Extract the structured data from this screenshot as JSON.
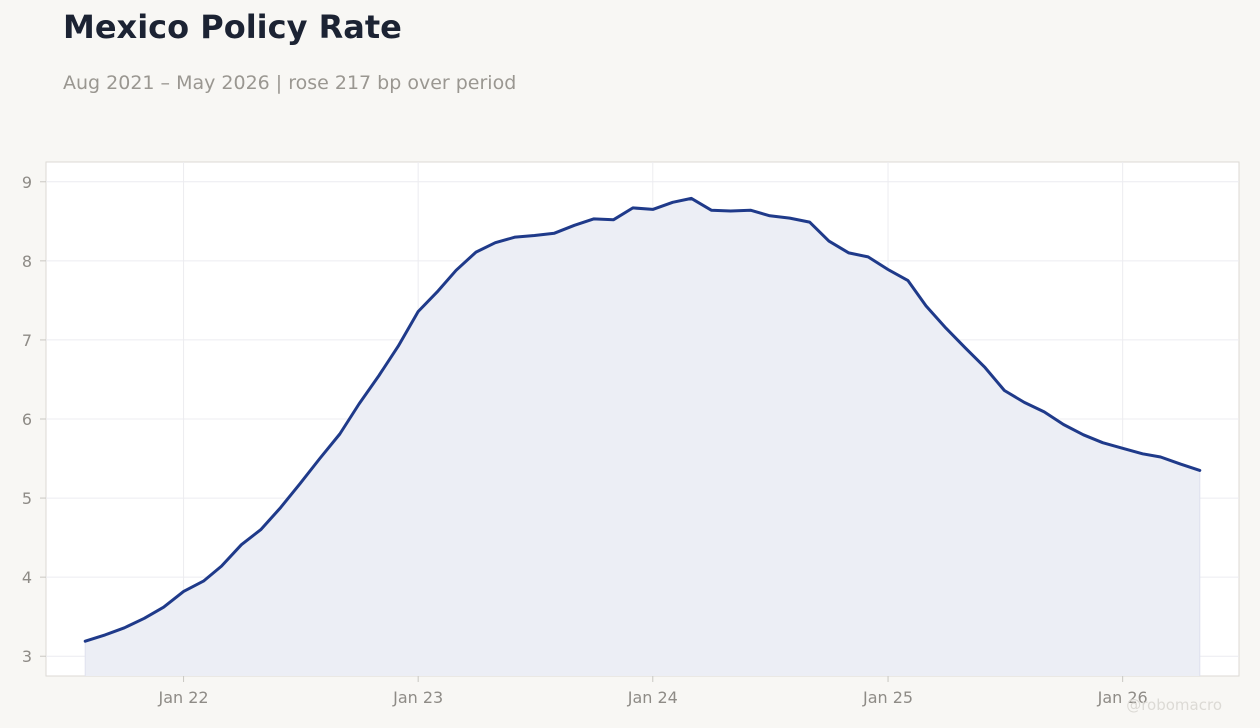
{
  "header": {
    "title": "Mexico Policy Rate",
    "subtitle": "Aug 2021 – May 2026 | rose 217 bp over period"
  },
  "watermark": "@robomacro",
  "colors": {
    "line": "#1f3a8a",
    "fill": "#eceef5",
    "grid": "#ececf0",
    "frame": "#dcdad5",
    "background": "#f8f7f4",
    "plot_background": "#ffffff"
  },
  "chart_data": {
    "type": "area",
    "title": "Mexico Policy Rate",
    "subtitle": "Aug 2021 – May 2026 | rose 217 bp over period",
    "xlabel": "",
    "ylabel": "",
    "ylim": [
      2.75,
      9.25
    ],
    "xlim": [
      "2021-06-01",
      "2026-07-01"
    ],
    "grid": true,
    "y_ticks": [
      3,
      4,
      5,
      6,
      7,
      8,
      9
    ],
    "x_ticks": [
      {
        "date": "2022-01-01",
        "label": "Jan 22"
      },
      {
        "date": "2023-01-01",
        "label": "Jan 23"
      },
      {
        "date": "2024-01-01",
        "label": "Jan 24"
      },
      {
        "date": "2025-01-01",
        "label": "Jan 25"
      },
      {
        "date": "2026-01-01",
        "label": "Jan 26"
      }
    ],
    "series": [
      {
        "x": [
          "2021-08-01",
          "2021-09-01",
          "2021-10-01",
          "2021-11-01",
          "2021-12-01",
          "2022-01-01",
          "2022-02-01",
          "2022-03-01",
          "2022-04-01",
          "2022-05-01",
          "2022-06-01",
          "2022-07-01",
          "2022-08-01",
          "2022-09-01",
          "2022-10-01",
          "2022-11-01",
          "2022-12-01",
          "2023-01-01",
          "2023-02-01",
          "2023-03-01",
          "2023-04-01",
          "2023-05-01",
          "2023-06-01",
          "2023-07-01",
          "2023-08-01",
          "2023-09-01",
          "2023-10-01",
          "2023-11-01",
          "2023-12-01",
          "2024-01-01",
          "2024-02-01",
          "2024-03-01",
          "2024-04-01",
          "2024-05-01",
          "2024-06-01",
          "2024-07-01",
          "2024-08-01",
          "2024-09-01",
          "2024-10-01",
          "2024-11-01",
          "2024-12-01",
          "2025-01-01",
          "2025-02-01",
          "2025-03-01",
          "2025-04-01",
          "2025-05-01",
          "2025-06-01",
          "2025-07-01",
          "2025-08-01",
          "2025-09-01",
          "2025-10-01",
          "2025-11-01",
          "2025-12-01",
          "2026-01-01",
          "2026-02-01",
          "2026-03-01",
          "2026-04-01",
          "2026-05-01"
        ],
        "values": [
          3.19,
          3.27,
          3.36,
          3.48,
          3.62,
          3.82,
          3.95,
          4.14,
          4.41,
          4.6,
          4.88,
          5.18,
          5.5,
          5.81,
          6.19,
          6.55,
          6.92,
          7.36,
          7.62,
          7.88,
          8.11,
          8.23,
          8.3,
          8.32,
          8.35,
          8.45,
          8.53,
          8.52,
          8.67,
          8.65,
          8.74,
          8.79,
          8.64,
          8.63,
          8.64,
          8.57,
          8.54,
          8.49,
          8.25,
          8.1,
          8.05,
          7.89,
          7.75,
          7.43,
          7.15,
          6.9,
          6.65,
          6.36,
          6.21,
          6.09,
          5.93,
          5.8,
          5.7,
          5.63,
          5.56,
          5.52,
          5.43,
          5.35
        ]
      }
    ]
  }
}
